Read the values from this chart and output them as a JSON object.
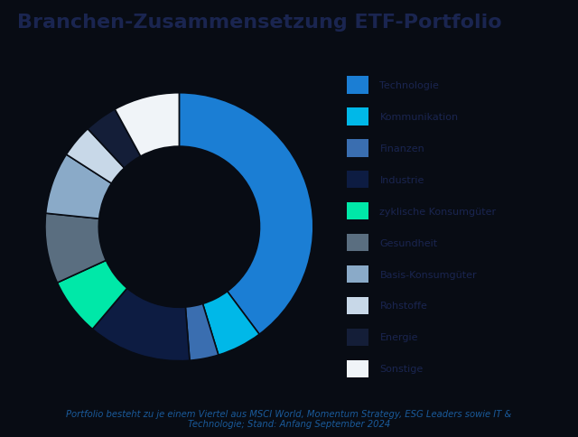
{
  "title": "Branchen-Zusammensetzung ETF-Portfolio",
  "subtitle": "Portfolio besteht zu je einem Viertel aus MSCI World, Momentum Strategy, ESG Leaders sowie IT &\nTechnologie; Stand: Anfang September 2024",
  "background_color": "#080c14",
  "title_color": "#1a2550",
  "subtitle_color": "#1a5a9a",
  "segments": [
    {
      "label": "Technologie",
      "value": 40.0,
      "color": "#1b7ed4"
    },
    {
      "label": "Kommunikation",
      "value": 5.5,
      "color": "#00b8e8"
    },
    {
      "label": "Finanzen",
      "value": 3.5,
      "color": "#3a6eb0"
    },
    {
      "label": "Industrie",
      "value": 12.5,
      "color": "#0d1c42"
    },
    {
      "label": "zyklische Konsumgüter",
      "value": 7.0,
      "color": "#00e8a8"
    },
    {
      "label": "Gesundheit",
      "value": 8.5,
      "color": "#5a6e80"
    },
    {
      "label": "Basis-Konsumgüter",
      "value": 7.5,
      "color": "#8aaac8"
    },
    {
      "label": "Rohstoffe",
      "value": 4.0,
      "color": "#c8d8e8"
    },
    {
      "label": "Energie",
      "value": 4.0,
      "color": "#141e38"
    },
    {
      "label": "Sonstige",
      "value": 8.0,
      "color": "#f0f4f8"
    }
  ],
  "legend_text_color": "#1a2550",
  "start_angle": 90,
  "figsize": [
    6.4,
    4.85
  ],
  "dpi": 100
}
